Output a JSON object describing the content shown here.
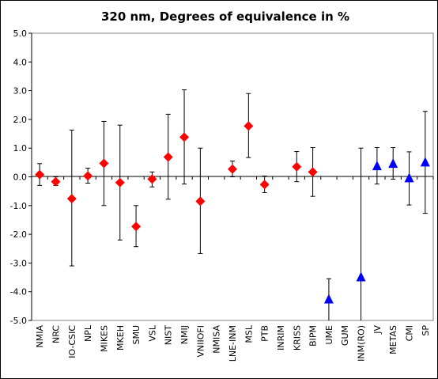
{
  "chart_data": {
    "type": "scatter",
    "title": "320 nm, Degrees of equivalence in %",
    "xlabel": "",
    "ylabel": "",
    "ylim": [
      -5.0,
      5.0
    ],
    "yticks": [
      5.0,
      4.0,
      3.0,
      2.0,
      1.0,
      0.0,
      -1.0,
      -2.0,
      -3.0,
      -4.0,
      -5.0
    ],
    "ytick_labels": [
      "5.0",
      "4.0",
      "3.0",
      "2.0",
      "1.0",
      "0.0",
      "-1.0",
      "-2.0",
      "-3.0",
      "-4.0",
      "-5.0"
    ],
    "grid": false,
    "categories": [
      "NMIA",
      "NRC",
      "IO-CSIC",
      "NPL",
      "MIKES",
      "MKEH",
      "SMU",
      "VSL",
      "NIST",
      "NMIJ",
      "VNIIOFI",
      "NMISA",
      "LNE-INM",
      "MSL",
      "PTB",
      "INRIM",
      "KRISS",
      "BIPM",
      "UME",
      "GUM",
      "INM(RO)",
      "JV",
      "METAS",
      "CMI",
      "SP"
    ],
    "points": [
      {
        "label": "NMIA",
        "value": 0.08,
        "lower": -0.3,
        "upper": 0.46,
        "marker": "diamond",
        "color": "#ff0000"
      },
      {
        "label": "NRC",
        "value": -0.17,
        "lower": -0.3,
        "upper": 0.0,
        "marker": "diamond",
        "color": "#ff0000"
      },
      {
        "label": "IO-CSIC",
        "value": -0.76,
        "lower": -3.1,
        "upper": 1.63,
        "marker": "diamond",
        "color": "#ff0000"
      },
      {
        "label": "NPL",
        "value": 0.03,
        "lower": -0.22,
        "upper": 0.3,
        "marker": "diamond",
        "color": "#ff0000"
      },
      {
        "label": "MIKES",
        "value": 0.47,
        "lower": -1.0,
        "upper": 1.93,
        "marker": "diamond",
        "color": "#ff0000"
      },
      {
        "label": "MKEH",
        "value": -0.2,
        "lower": -2.2,
        "upper": 1.8,
        "marker": "diamond",
        "color": "#ff0000"
      },
      {
        "label": "SMU",
        "value": -1.73,
        "lower": -2.43,
        "upper": -1.0,
        "marker": "diamond",
        "color": "#ff0000"
      },
      {
        "label": "VSL",
        "value": -0.08,
        "lower": -0.35,
        "upper": 0.17,
        "marker": "diamond",
        "color": "#ff0000"
      },
      {
        "label": "NIST",
        "value": 0.69,
        "lower": -0.78,
        "upper": 2.18,
        "marker": "diamond",
        "color": "#ff0000"
      },
      {
        "label": "NMIJ",
        "value": 1.38,
        "lower": -0.25,
        "upper": 3.03,
        "marker": "diamond",
        "color": "#ff0000"
      },
      {
        "label": "VNIIOFI",
        "value": -0.85,
        "lower": -2.67,
        "upper": 1.0,
        "marker": "diamond",
        "color": "#ff0000"
      },
      {
        "label": "NMISA",
        "value": null,
        "lower": null,
        "upper": null,
        "marker": "none",
        "color": "#ff0000"
      },
      {
        "label": "LNE-INM",
        "value": 0.27,
        "lower": 0.0,
        "upper": 0.55,
        "marker": "diamond",
        "color": "#ff0000"
      },
      {
        "label": "MSL",
        "value": 1.77,
        "lower": 0.67,
        "upper": 2.9,
        "marker": "diamond",
        "color": "#ff0000"
      },
      {
        "label": "PTB",
        "value": -0.27,
        "lower": -0.55,
        "upper": 0.03,
        "marker": "diamond",
        "color": "#ff0000"
      },
      {
        "label": "INRIM",
        "value": null,
        "lower": null,
        "upper": null,
        "marker": "none",
        "color": "#ff0000"
      },
      {
        "label": "KRISS",
        "value": 0.35,
        "lower": -0.17,
        "upper": 0.88,
        "marker": "diamond",
        "color": "#ff0000"
      },
      {
        "label": "BIPM",
        "value": 0.17,
        "lower": -0.68,
        "upper": 1.02,
        "marker": "diamond",
        "color": "#ff0000"
      },
      {
        "label": "UME",
        "value": -4.27,
        "lower": -5.0,
        "upper": -3.55,
        "marker": "triangle",
        "color": "#0000ff"
      },
      {
        "label": "GUM",
        "value": null,
        "lower": null,
        "upper": null,
        "marker": "none",
        "color": "#0000ff"
      },
      {
        "label": "INM(RO)",
        "value": -3.5,
        "lower": -5.0,
        "upper": 1.0,
        "marker": "triangle",
        "color": "#0000ff"
      },
      {
        "label": "JV",
        "value": 0.37,
        "lower": -0.25,
        "upper": 1.02,
        "marker": "triangle",
        "color": "#0000ff"
      },
      {
        "label": "METAS",
        "value": 0.45,
        "lower": -0.08,
        "upper": 1.02,
        "marker": "triangle",
        "color": "#0000ff"
      },
      {
        "label": "CMI",
        "value": -0.05,
        "lower": -0.98,
        "upper": 0.87,
        "marker": "triangle",
        "color": "#0000ff"
      },
      {
        "label": "SP",
        "value": 0.5,
        "lower": -1.27,
        "upper": 2.28,
        "marker": "triangle",
        "color": "#0000ff"
      }
    ]
  }
}
